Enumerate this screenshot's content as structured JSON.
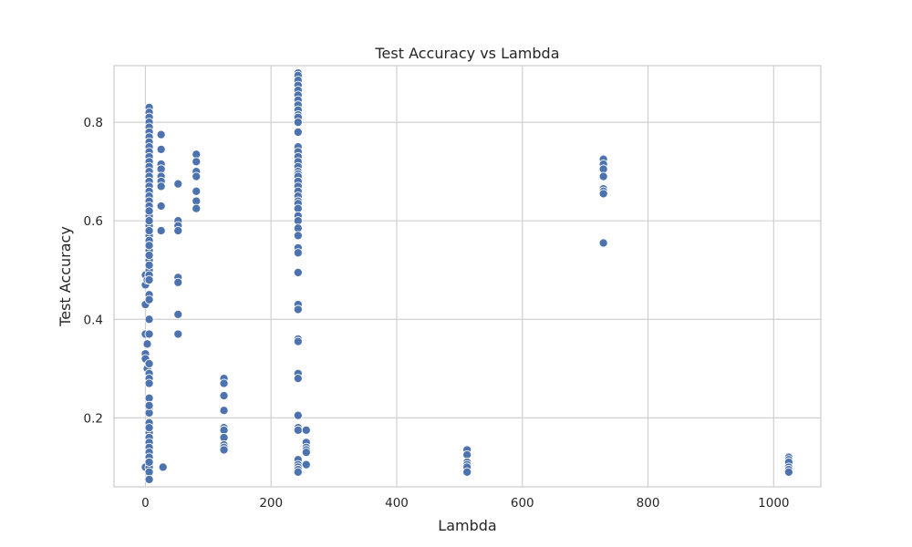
{
  "chart_data": {
    "type": "scatter",
    "title": "Test Accuracy vs Lambda",
    "xlabel": "Lambda",
    "ylabel": "Test Accuracy",
    "xlim": [
      -50,
      1075
    ],
    "ylim": [
      0.06,
      0.915
    ],
    "xticks": [
      0,
      200,
      400,
      600,
      800,
      1000
    ],
    "yticks": [
      0.2,
      0.4,
      0.6,
      0.8
    ],
    "grid": true,
    "marker_color": "#4c72b0",
    "series": [
      {
        "points": [
          [
            0,
            0.1
          ],
          [
            0,
            0.43
          ],
          [
            0,
            0.49
          ],
          [
            0,
            0.37
          ],
          [
            0,
            0.33
          ],
          [
            0,
            0.32
          ],
          [
            0,
            0.47
          ],
          [
            3,
            0.48
          ],
          [
            3,
            0.3
          ],
          [
            3,
            0.35
          ],
          [
            6,
            0.83
          ],
          [
            6,
            0.82
          ],
          [
            6,
            0.81
          ],
          [
            6,
            0.8
          ],
          [
            6,
            0.79
          ],
          [
            6,
            0.78
          ],
          [
            6,
            0.77
          ],
          [
            6,
            0.76
          ],
          [
            6,
            0.75
          ],
          [
            6,
            0.74
          ],
          [
            6,
            0.73
          ],
          [
            6,
            0.72
          ],
          [
            6,
            0.71
          ],
          [
            6,
            0.7
          ],
          [
            6,
            0.69
          ],
          [
            6,
            0.68
          ],
          [
            6,
            0.67
          ],
          [
            6,
            0.66
          ],
          [
            6,
            0.65
          ],
          [
            6,
            0.64
          ],
          [
            6,
            0.63
          ],
          [
            6,
            0.61
          ],
          [
            6,
            0.59
          ],
          [
            6,
            0.57
          ],
          [
            6,
            0.56
          ],
          [
            6,
            0.54
          ],
          [
            6,
            0.52
          ],
          [
            6,
            0.5
          ],
          [
            6,
            0.49
          ],
          [
            6,
            0.48
          ],
          [
            6,
            0.45
          ],
          [
            6,
            0.44
          ],
          [
            6,
            0.4
          ],
          [
            6,
            0.37
          ],
          [
            6,
            0.31
          ],
          [
            6,
            0.29
          ],
          [
            6,
            0.28
          ],
          [
            6,
            0.27
          ],
          [
            6,
            0.24
          ],
          [
            6,
            0.22
          ],
          [
            6,
            0.21
          ],
          [
            6,
            0.19
          ],
          [
            6,
            0.17
          ],
          [
            6,
            0.16
          ],
          [
            6,
            0.15
          ],
          [
            6,
            0.14
          ],
          [
            6,
            0.13
          ],
          [
            6,
            0.12
          ],
          [
            6,
            0.1
          ],
          [
            6,
            0.09
          ],
          [
            6,
            0.075
          ],
          [
            6,
            0.62
          ],
          [
            6,
            0.6
          ],
          [
            6,
            0.58
          ],
          [
            6,
            0.55
          ],
          [
            6,
            0.53
          ],
          [
            6,
            0.51
          ],
          [
            6,
            0.225
          ],
          [
            6,
            0.18
          ],
          [
            6,
            0.11
          ],
          [
            25,
            0.775
          ],
          [
            25,
            0.745
          ],
          [
            25,
            0.715
          ],
          [
            25,
            0.705
          ],
          [
            25,
            0.69
          ],
          [
            25,
            0.68
          ],
          [
            25,
            0.67
          ],
          [
            25,
            0.63
          ],
          [
            25,
            0.58
          ],
          [
            28,
            0.1
          ],
          [
            52,
            0.675
          ],
          [
            52,
            0.6
          ],
          [
            52,
            0.59
          ],
          [
            52,
            0.58
          ],
          [
            52,
            0.485
          ],
          [
            52,
            0.475
          ],
          [
            52,
            0.41
          ],
          [
            52,
            0.37
          ],
          [
            81,
            0.735
          ],
          [
            81,
            0.72
          ],
          [
            81,
            0.7
          ],
          [
            81,
            0.69
          ],
          [
            81,
            0.66
          ],
          [
            81,
            0.64
          ],
          [
            81,
            0.625
          ],
          [
            125,
            0.28
          ],
          [
            125,
            0.27
          ],
          [
            125,
            0.245
          ],
          [
            125,
            0.215
          ],
          [
            125,
            0.18
          ],
          [
            125,
            0.175
          ],
          [
            125,
            0.16
          ],
          [
            125,
            0.145
          ],
          [
            125,
            0.14
          ],
          [
            125,
            0.135
          ],
          [
            243,
            0.9
          ],
          [
            243,
            0.895
          ],
          [
            243,
            0.885
          ],
          [
            243,
            0.875
          ],
          [
            243,
            0.865
          ],
          [
            243,
            0.855
          ],
          [
            243,
            0.845
          ],
          [
            243,
            0.835
          ],
          [
            243,
            0.825
          ],
          [
            243,
            0.815
          ],
          [
            243,
            0.81
          ],
          [
            243,
            0.8
          ],
          [
            243,
            0.78
          ],
          [
            243,
            0.75
          ],
          [
            243,
            0.74
          ],
          [
            243,
            0.73
          ],
          [
            243,
            0.72
          ],
          [
            243,
            0.71
          ],
          [
            243,
            0.7
          ],
          [
            243,
            0.695
          ],
          [
            243,
            0.69
          ],
          [
            243,
            0.68
          ],
          [
            243,
            0.67
          ],
          [
            243,
            0.66
          ],
          [
            243,
            0.65
          ],
          [
            243,
            0.64
          ],
          [
            243,
            0.635
          ],
          [
            243,
            0.625
          ],
          [
            243,
            0.61
          ],
          [
            243,
            0.6
          ],
          [
            243,
            0.585
          ],
          [
            243,
            0.57
          ],
          [
            243,
            0.545
          ],
          [
            243,
            0.535
          ],
          [
            243,
            0.495
          ],
          [
            243,
            0.43
          ],
          [
            243,
            0.42
          ],
          [
            243,
            0.36
          ],
          [
            243,
            0.355
          ],
          [
            243,
            0.29
          ],
          [
            243,
            0.28
          ],
          [
            243,
            0.205
          ],
          [
            243,
            0.18
          ],
          [
            243,
            0.175
          ],
          [
            243,
            0.115
          ],
          [
            243,
            0.105
          ],
          [
            243,
            0.1
          ],
          [
            243,
            0.095
          ],
          [
            243,
            0.09
          ],
          [
            256,
            0.175
          ],
          [
            256,
            0.15
          ],
          [
            256,
            0.14
          ],
          [
            256,
            0.135
          ],
          [
            256,
            0.13
          ],
          [
            256,
            0.105
          ],
          [
            512,
            0.135
          ],
          [
            512,
            0.125
          ],
          [
            512,
            0.11
          ],
          [
            512,
            0.105
          ],
          [
            512,
            0.1
          ],
          [
            512,
            0.09
          ],
          [
            729,
            0.725
          ],
          [
            729,
            0.715
          ],
          [
            729,
            0.705
          ],
          [
            729,
            0.69
          ],
          [
            729,
            0.665
          ],
          [
            729,
            0.66
          ],
          [
            729,
            0.655
          ],
          [
            729,
            0.555
          ],
          [
            1024,
            0.12
          ],
          [
            1024,
            0.115
          ],
          [
            1024,
            0.11
          ],
          [
            1024,
            0.1
          ],
          [
            1024,
            0.095
          ],
          [
            1024,
            0.09
          ]
        ]
      }
    ]
  }
}
